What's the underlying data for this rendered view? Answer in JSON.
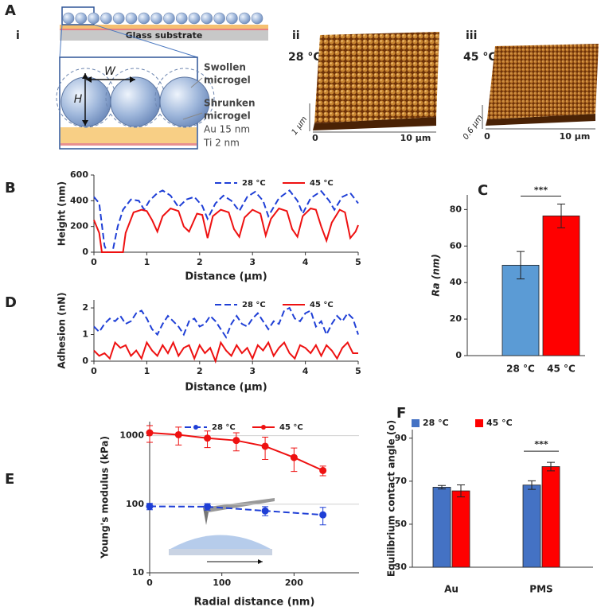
{
  "panel_labels": [
    "A",
    "B",
    "C",
    "D",
    "E",
    "F"
  ],
  "panel_a": {
    "sub_labels": [
      "i",
      "ii",
      "iii"
    ],
    "substrate": "Glass substrate",
    "width_symbol": "W",
    "height_symbol": "H",
    "swollen": [
      "Swollen",
      "microgel"
    ],
    "shrunken": [
      "Shrunken",
      "microgel"
    ],
    "au_layer": "Au 15 nm",
    "ti_layer": "Ti 2 nm",
    "images": [
      {
        "temperature": "28 °C",
        "z_label": "1 µm",
        "x_start": "0",
        "x_end": "10 µm"
      },
      {
        "temperature": "45 °C",
        "z_label": "0.6 µm",
        "x_start": "0",
        "x_end": "10 µm"
      }
    ]
  },
  "chart_data": [
    {
      "type": "line",
      "xlabel": "Distance (µm)",
      "ylabel": "Height (nm)",
      "xlim": [
        0,
        5
      ],
      "xticks": [
        0,
        1,
        2,
        3,
        4,
        5
      ],
      "ylim": [
        0,
        600
      ],
      "yticks": [
        0,
        200,
        400,
        600
      ],
      "legend": "top",
      "series": [
        {
          "name": "28 °C",
          "color": "#1f3fd6",
          "style": "dashed",
          "x": [
            0,
            0.1,
            0.2,
            0.25,
            0.35,
            0.45,
            0.55,
            0.7,
            0.85,
            0.95,
            1.05,
            1.2,
            1.3,
            1.45,
            1.6,
            1.75,
            1.9,
            2.05,
            2.15,
            2.3,
            2.45,
            2.6,
            2.75,
            2.9,
            3.05,
            3.2,
            3.3,
            3.5,
            3.7,
            3.85,
            3.95,
            4.1,
            4.3,
            4.45,
            4.55,
            4.7,
            4.85,
            5
          ],
          "values": [
            430,
            380,
            50,
            0,
            0,
            200,
            330,
            410,
            400,
            330,
            400,
            460,
            480,
            440,
            350,
            410,
            430,
            360,
            260,
            380,
            440,
            400,
            320,
            430,
            470,
            400,
            280,
            420,
            480,
            400,
            300,
            420,
            475,
            400,
            330,
            430,
            460,
            380
          ]
        },
        {
          "name": "45 °C",
          "color": "#ee1111",
          "style": "solid",
          "x": [
            0,
            0.1,
            0.15,
            0.55,
            0.6,
            0.75,
            0.9,
            1.0,
            1.1,
            1.2,
            1.3,
            1.45,
            1.6,
            1.7,
            1.8,
            1.95,
            2.05,
            2.15,
            2.25,
            2.4,
            2.55,
            2.65,
            2.75,
            2.85,
            3.0,
            3.15,
            3.25,
            3.35,
            3.5,
            3.65,
            3.75,
            3.85,
            3.95,
            4.1,
            4.2,
            4.3,
            4.4,
            4.5,
            4.65,
            4.75,
            4.85,
            4.95,
            5
          ],
          "values": [
            250,
            150,
            0,
            0,
            150,
            310,
            330,
            320,
            250,
            160,
            280,
            340,
            320,
            200,
            160,
            300,
            290,
            110,
            280,
            330,
            310,
            180,
            120,
            270,
            330,
            300,
            130,
            260,
            340,
            320,
            180,
            120,
            280,
            340,
            330,
            200,
            90,
            230,
            330,
            310,
            110,
            160,
            210
          ]
        }
      ]
    },
    {
      "type": "bar",
      "ylabel": "Ra (nm)",
      "categories": [
        "28 °C",
        "45 °C"
      ],
      "values": [
        49.5,
        76.5
      ],
      "errors": [
        7.5,
        6.5
      ],
      "colors": [
        "#5b9bd5",
        "#ff0000"
      ],
      "ylim": [
        0,
        88
      ],
      "yticks": [
        0,
        20,
        40,
        60,
        80
      ],
      "annotation": "***"
    },
    {
      "type": "line",
      "xlabel": "Distance (µm)",
      "ylabel": "Adhesion (nN)",
      "xlim": [
        0,
        5
      ],
      "xticks": [
        0,
        1,
        2,
        3,
        4,
        5
      ],
      "ylim": [
        0,
        2.3
      ],
      "yticks": [
        0,
        1,
        2
      ],
      "legend": "top",
      "x": [
        0,
        0.1,
        0.2,
        0.3,
        0.4,
        0.5,
        0.6,
        0.7,
        0.8,
        0.9,
        1.0,
        1.1,
        1.2,
        1.3,
        1.4,
        1.5,
        1.6,
        1.7,
        1.8,
        1.9,
        2.0,
        2.1,
        2.2,
        2.3,
        2.4,
        2.5,
        2.6,
        2.7,
        2.8,
        2.9,
        3.0,
        3.1,
        3.2,
        3.3,
        3.4,
        3.5,
        3.6,
        3.7,
        3.8,
        3.9,
        4.0,
        4.1,
        4.2,
        4.3,
        4.4,
        4.5,
        4.6,
        4.7,
        4.8,
        4.9,
        5.0
      ],
      "series": [
        {
          "name": "28 °C",
          "color": "#1f3fd6",
          "style": "dashed",
          "values": [
            1.3,
            1.1,
            1.4,
            1.6,
            1.5,
            1.7,
            1.4,
            1.5,
            1.8,
            1.9,
            1.6,
            1.2,
            1.0,
            1.4,
            1.7,
            1.5,
            1.3,
            1.0,
            1.5,
            1.6,
            1.3,
            1.4,
            1.7,
            1.5,
            1.2,
            0.9,
            1.4,
            1.7,
            1.4,
            1.3,
            1.6,
            1.8,
            1.5,
            1.2,
            1.5,
            1.4,
            1.9,
            2.0,
            1.6,
            1.5,
            1.8,
            1.9,
            1.3,
            1.5,
            1.0,
            1.4,
            1.7,
            1.5,
            1.8,
            1.6,
            1.0
          ]
        },
        {
          "name": "45 °C",
          "color": "#ee1111",
          "style": "solid",
          "values": [
            0.4,
            0.2,
            0.3,
            0.1,
            0.7,
            0.5,
            0.6,
            0.2,
            0.4,
            0.1,
            0.7,
            0.4,
            0.2,
            0.6,
            0.3,
            0.7,
            0.2,
            0.5,
            0.6,
            0.1,
            0.6,
            0.3,
            0.5,
            0.0,
            0.7,
            0.4,
            0.2,
            0.6,
            0.3,
            0.5,
            0.1,
            0.6,
            0.4,
            0.7,
            0.2,
            0.5,
            0.7,
            0.3,
            0.1,
            0.6,
            0.5,
            0.3,
            0.6,
            0.2,
            0.6,
            0.4,
            0.1,
            0.5,
            0.7,
            0.3,
            0.3
          ]
        }
      ]
    },
    {
      "type": "line",
      "xlabel": "Radial distance (nm)",
      "ylabel": "Young's modulus (kPa)",
      "xlim": [
        0,
        290
      ],
      "xticks": [
        0,
        100,
        200
      ],
      "ylim": [
        10,
        1600
      ],
      "yticks": [
        10,
        100,
        1000
      ],
      "yscale": "log",
      "grid": true,
      "markers": true,
      "legend": "top",
      "series": [
        {
          "name": "28 °C",
          "color": "#1f3fd6",
          "style": "dashed",
          "x": [
            0,
            80,
            160,
            240
          ],
          "values": [
            93,
            92,
            80,
            70
          ],
          "errors": [
            10,
            10,
            12,
            20
          ]
        },
        {
          "name": "45 °C",
          "color": "#ee1111",
          "style": "solid",
          "x": [
            0,
            40,
            80,
            120,
            160,
            200,
            240
          ],
          "values": [
            1100,
            1030,
            920,
            850,
            700,
            480,
            310
          ],
          "errors": [
            300,
            300,
            250,
            250,
            250,
            180,
            50
          ]
        }
      ]
    },
    {
      "type": "bar",
      "ylabel": "Equilibrium contact angle (o)",
      "categories": [
        "Au",
        "PMS"
      ],
      "ylim": [
        30,
        94
      ],
      "yticks": [
        30,
        50,
        70,
        90
      ],
      "legend": "top",
      "annotation": "***",
      "series": [
        {
          "name": "28 °C",
          "color": "#4472c4",
          "values": [
            67.2,
            68.2
          ],
          "errors": [
            0.8,
            2.0
          ]
        },
        {
          "name": "45 °C",
          "color": "#ff0000",
          "values": [
            65.5,
            76.8
          ],
          "errors": [
            2.8,
            2.0
          ]
        }
      ]
    }
  ]
}
